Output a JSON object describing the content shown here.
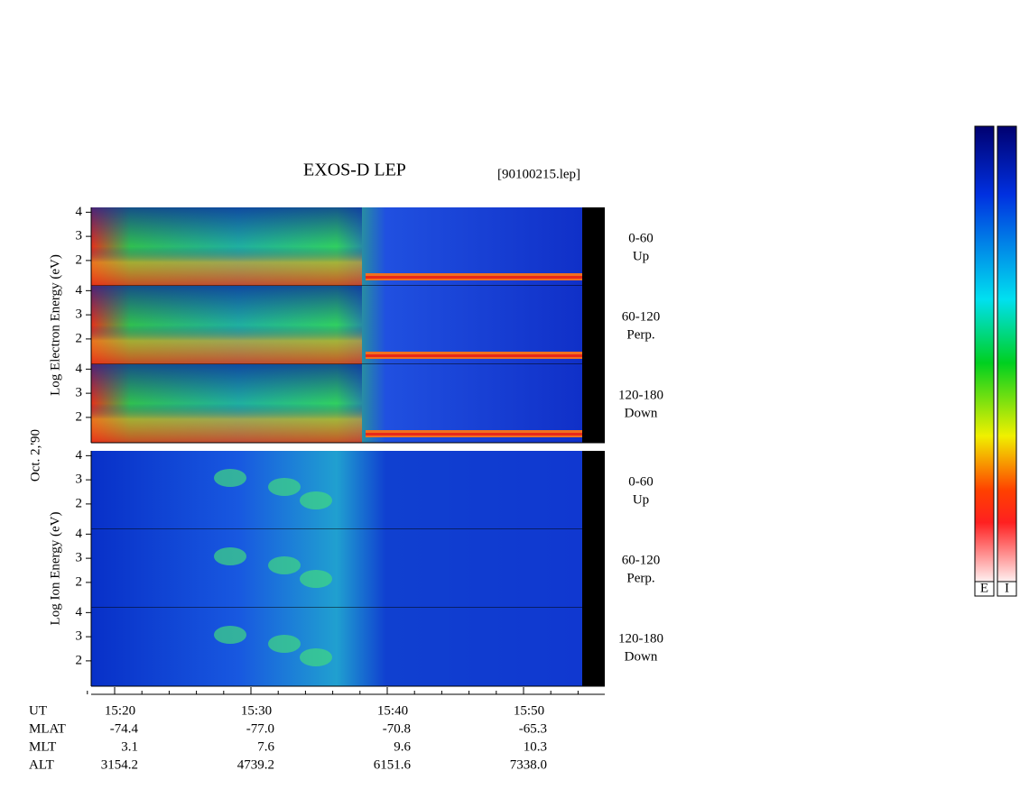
{
  "chart_data": {
    "type": "spectrogram",
    "title": "EXOS-D LEP",
    "file_label": "[90100215.lep]",
    "date_label": "Oct. 2,'90",
    "ylim": [
      0.95,
      4.2
    ],
    "yticks": [
      2,
      3,
      4
    ],
    "groups": [
      {
        "ylabel": "Log Electron Energy (eV)",
        "kind": "electron",
        "panels": [
          {
            "label": "0-60",
            "sublabel": "Up"
          },
          {
            "label": "60-120",
            "sublabel": "Perp."
          },
          {
            "label": "120-180",
            "sublabel": "Down"
          }
        ]
      },
      {
        "ylabel": "Log Ion Energy (eV)",
        "kind": "ion",
        "panels": [
          {
            "label": "0-60",
            "sublabel": "Up"
          },
          {
            "label": "60-120",
            "sublabel": "Perp."
          },
          {
            "label": "120-180",
            "sublabel": "Down"
          }
        ]
      }
    ],
    "x_name": "UT",
    "categories": [
      "15:20",
      "15:30",
      "15:40",
      "15:50"
    ],
    "ephemeris": [
      {
        "name": "MLAT",
        "values": [
          "-74.4",
          "-77.0",
          "-70.8",
          "-65.3"
        ]
      },
      {
        "name": "MLT",
        "values": [
          "3.1",
          "7.6",
          "9.6",
          "10.3"
        ]
      },
      {
        "name": "ALT",
        "values": [
          "3154.2",
          "4739.2",
          "6151.6",
          "7338.0"
        ]
      }
    ],
    "colorbars": [
      "E",
      "I"
    ]
  }
}
